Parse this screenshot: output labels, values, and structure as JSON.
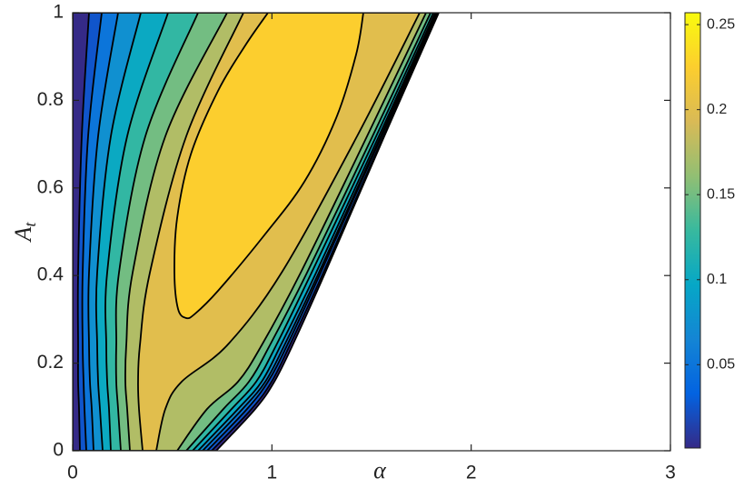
{
  "chart_data": {
    "type": "contour",
    "xlabel": "α",
    "ylabel": "A",
    "ylabel_subscript": "t",
    "xlim": [
      0,
      3
    ],
    "xticks": [
      0,
      1,
      2,
      3
    ],
    "ylim": [
      0,
      1
    ],
    "yticks": [
      0,
      0.2,
      0.4,
      0.6,
      0.8,
      1
    ],
    "levels": [
      0,
      0.025,
      0.05,
      0.075,
      0.1,
      0.125,
      0.15,
      0.175,
      0.2,
      0.225
    ],
    "colormap": "parula",
    "colorbar": {
      "lim": [
        0.001,
        0.257
      ],
      "ticks": [
        0.05,
        0.1,
        0.15,
        0.2,
        0.25
      ]
    }
  }
}
